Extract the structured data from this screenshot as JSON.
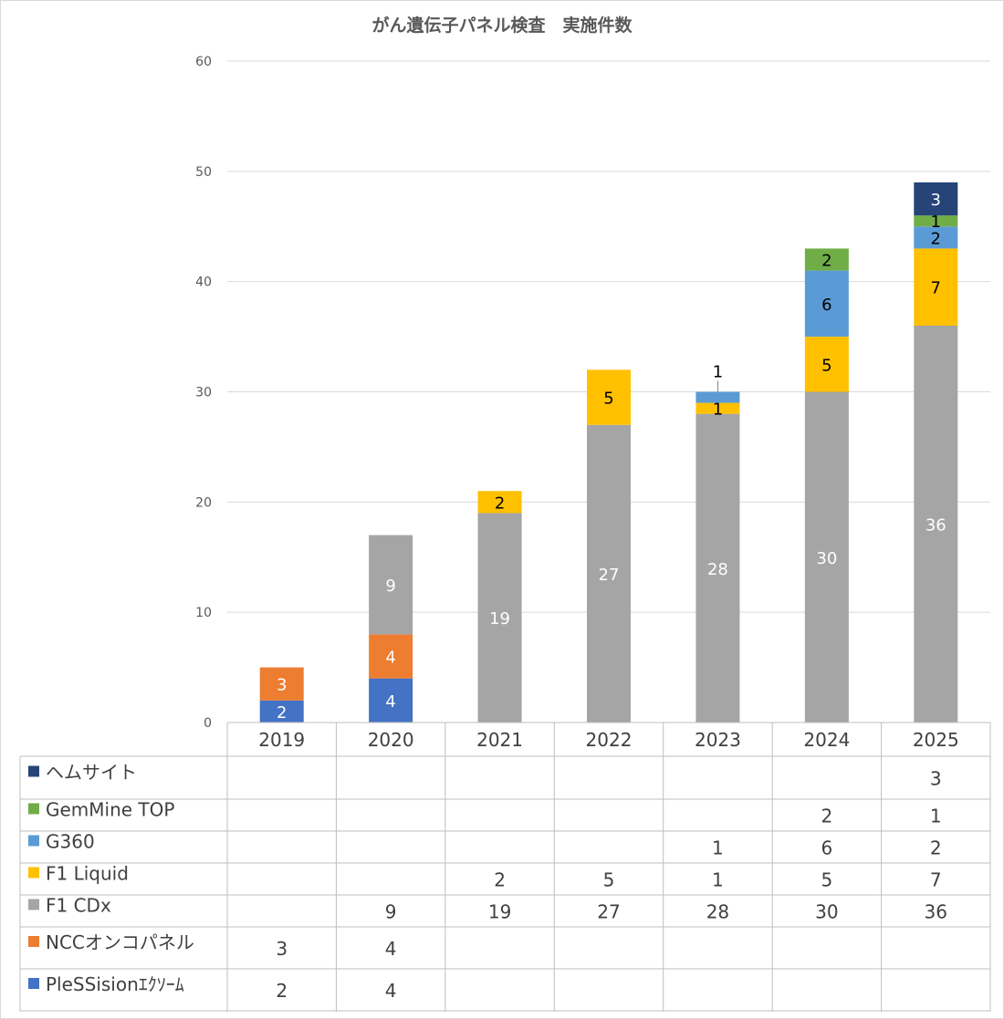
{
  "chart_data": {
    "type": "bar",
    "stacked": true,
    "title": "がん遺伝子パネル検査　実施件数",
    "categories": [
      "2019",
      "2020",
      "2021",
      "2022",
      "2023",
      "2024",
      "2025"
    ],
    "ylim": [
      0,
      60
    ],
    "yticks": [
      0,
      10,
      20,
      30,
      40,
      50,
      60
    ],
    "grid": true,
    "legend_placement": "data-table",
    "series": [
      {
        "name": "PleSSisionｴｸｿｰﾑ",
        "color": "#4472c4",
        "label_color": "#ffffff",
        "values": [
          2,
          4,
          null,
          null,
          null,
          null,
          null
        ]
      },
      {
        "name": "NCCオンコパネル",
        "color": "#ed7d31",
        "label_color": "#ffffff",
        "values": [
          3,
          4,
          null,
          null,
          null,
          null,
          null
        ]
      },
      {
        "name": "F1 CDx",
        "color": "#a5a5a5",
        "label_color": "#ffffff",
        "values": [
          null,
          9,
          19,
          27,
          28,
          30,
          36
        ]
      },
      {
        "name": "F1 Liquid",
        "color": "#ffc000",
        "label_color": "#000000",
        "values": [
          null,
          null,
          2,
          5,
          1,
          5,
          7
        ]
      },
      {
        "name": "G360",
        "color": "#5b9bd5",
        "label_color": "#000000",
        "values": [
          null,
          null,
          null,
          null,
          1,
          6,
          2
        ]
      },
      {
        "name": "GemMine TOP",
        "color": "#70ad47",
        "label_color": "#000000",
        "values": [
          null,
          null,
          null,
          null,
          null,
          2,
          1
        ]
      },
      {
        "name": "ヘムサイト",
        "color": "#264478",
        "label_color": "#ffffff",
        "values": [
          null,
          null,
          null,
          null,
          null,
          null,
          3
        ]
      }
    ],
    "table_row_order": [
      "ヘムサイト",
      "GemMine TOP",
      "G360",
      "F1 Liquid",
      "F1 CDx",
      "NCCオンコパネル",
      "PleSSisionｴｸｿｰﾑ"
    ]
  }
}
